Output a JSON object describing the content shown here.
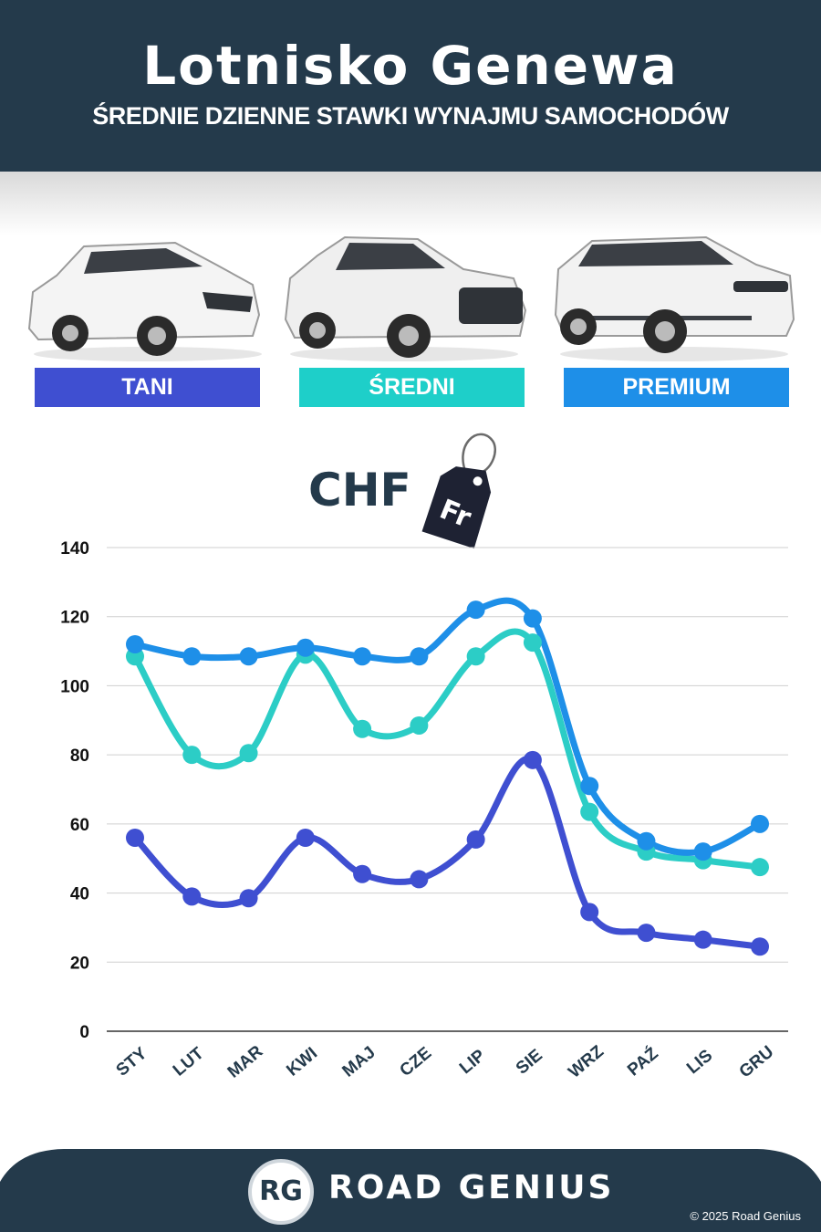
{
  "header": {
    "title": "Lotnisko Genewa",
    "subtitle": "ŚREDNIE DZIENNE STAWKI WYNAJMU SAMOCHODÓW"
  },
  "categories_bar": [
    {
      "label": "TANI",
      "color": "#3f4fd1",
      "icon": "hatchback-car"
    },
    {
      "label": "ŚREDNI",
      "color": "#1ecfc9",
      "icon": "suv-car"
    },
    {
      "label": "PREMIUM",
      "color": "#1e8fe8",
      "icon": "luxury-suv-car"
    }
  ],
  "currency": {
    "label": "CHF",
    "tag_text": "Fr"
  },
  "chart_data": {
    "type": "line",
    "categories": [
      "STY",
      "LUT",
      "MAR",
      "KWI",
      "MAJ",
      "CZE",
      "LIP",
      "SIE",
      "WRZ",
      "PAŹ",
      "LIS",
      "GRU"
    ],
    "series": [
      {
        "name": "TANI",
        "color": "#3f4fd1",
        "values": [
          56,
          39,
          38.5,
          56,
          45.5,
          44,
          55.5,
          78.5,
          34.5,
          28.5,
          26.5,
          24.5
        ]
      },
      {
        "name": "ŚREDNI",
        "color": "#2ccdc6",
        "values": [
          108.5,
          80,
          80.5,
          109,
          87.5,
          88.5,
          108.5,
          112.5,
          63.5,
          52,
          49.5,
          47.5
        ]
      },
      {
        "name": "PREMIUM",
        "color": "#1e8fe8",
        "values": [
          112,
          108.5,
          108.5,
          111,
          108.5,
          108.5,
          122,
          119.5,
          71,
          55,
          52,
          60
        ]
      }
    ],
    "yticks": [
      0,
      20,
      40,
      60,
      80,
      100,
      120,
      140
    ],
    "ylim": [
      0,
      140
    ],
    "grid": true,
    "legend": "top (category badges)"
  },
  "footer": {
    "logo": "RG",
    "brand": "ROAD GENIUS",
    "copyright": "© 2025 Road Genius",
    "bg_color": "#243a4b"
  }
}
